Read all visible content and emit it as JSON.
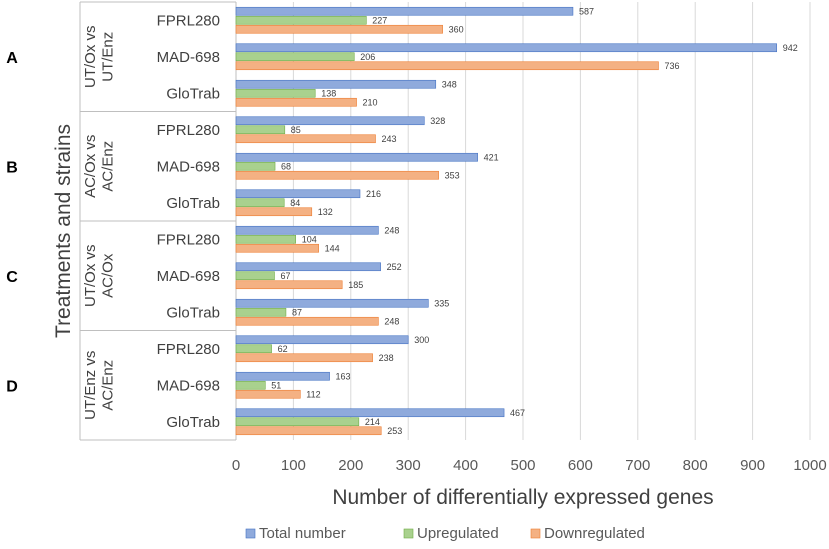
{
  "chart_data": {
    "type": "bar",
    "orientation": "horizontal",
    "xlabel": "Number of differentially expressed genes",
    "ylabel": "Treatments and strains",
    "xlim": [
      0,
      1000
    ],
    "xticks": [
      0,
      100,
      200,
      300,
      400,
      500,
      600,
      700,
      800,
      900,
      1000
    ],
    "grid": true,
    "legend_position": "bottom",
    "series_order": [
      "Total number",
      "Upregulated",
      "Downregulated"
    ],
    "colors": {
      "Total number": "#8faadc",
      "Upregulated": "#a9d18e",
      "Downregulated": "#f4b183"
    },
    "colors_edge": {
      "Total number": "#4472c4",
      "Upregulated": "#70ad47",
      "Downregulated": "#ed7d31"
    },
    "groups": [
      {
        "letter": "A",
        "label_line1": "UT/Ox  vs",
        "label_line2": "UT/Enz",
        "strains": [
          {
            "name": "FPRL280",
            "total": 587,
            "up": 227,
            "down": 360
          },
          {
            "name": "MAD-698",
            "total": 942,
            "up": 206,
            "down": 736
          },
          {
            "name": "GloTrab",
            "total": 348,
            "up": 138,
            "down": 210
          }
        ]
      },
      {
        "letter": "B",
        "label_line1": "AC/Ox  vs",
        "label_line2": "AC/Enz",
        "strains": [
          {
            "name": "FPRL280",
            "total": 328,
            "up": 85,
            "down": 243
          },
          {
            "name": "MAD-698",
            "total": 421,
            "up": 68,
            "down": 353
          },
          {
            "name": "GloTrab",
            "total": 216,
            "up": 84,
            "down": 132
          }
        ]
      },
      {
        "letter": "C",
        "label_line1": "UT/Ox  vs",
        "label_line2": "AC/Ox",
        "strains": [
          {
            "name": "FPRL280",
            "total": 248,
            "up": 104,
            "down": 144
          },
          {
            "name": "MAD-698",
            "total": 252,
            "up": 67,
            "down": 185
          },
          {
            "name": "GloTrab",
            "total": 335,
            "up": 87,
            "down": 248
          }
        ]
      },
      {
        "letter": "D",
        "label_line1": "UT/Enz  vs",
        "label_line2": "AC/Enz",
        "strains": [
          {
            "name": "FPRL280",
            "total": 300,
            "up": 62,
            "down": 238
          },
          {
            "name": "MAD-698",
            "total": 163,
            "up": 51,
            "down": 112
          },
          {
            "name": "GloTrab",
            "total": 467,
            "up": 214,
            "down": 253
          }
        ]
      }
    ]
  }
}
